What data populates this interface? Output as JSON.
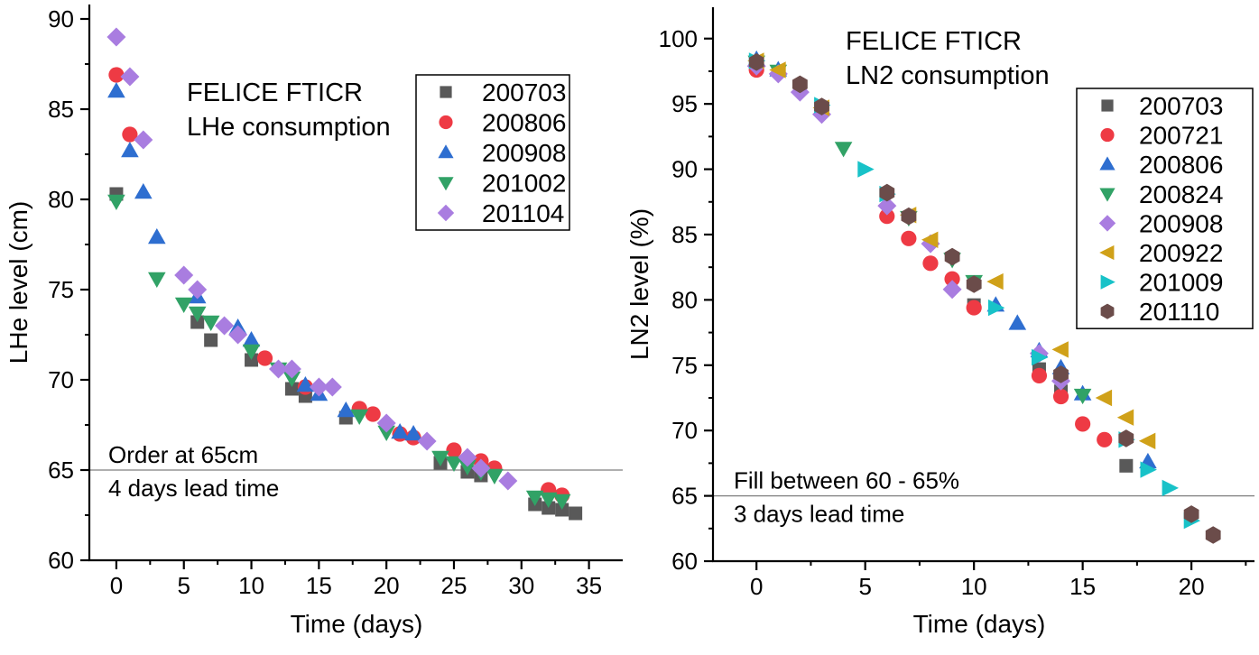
{
  "page": {
    "background": "#ffffff",
    "line_65_color": "#7f7f7f",
    "axis_color": "#000000"
  },
  "chart_data": [
    {
      "type": "scatter",
      "title_lines": [
        "FELICE FTICR",
        "LHe consumption"
      ],
      "xlabel": "Time (days)",
      "ylabel": "LHe level (cm)",
      "xlim": [
        -2,
        37.5
      ],
      "ylim": [
        60,
        90.8
      ],
      "x_ticks": [
        0,
        5,
        10,
        15,
        20,
        25,
        30,
        35
      ],
      "y_ticks": [
        60,
        65,
        70,
        75,
        80,
        85,
        90
      ],
      "x_minor_step": 2.5,
      "y_minor_step": 2.5,
      "grid": false,
      "legend_position": "top-right",
      "annotation": {
        "line_y": 65,
        "text_above": "Order at 65cm",
        "text_below": "4 days lead time"
      },
      "series": [
        {
          "name": "200703",
          "marker": "square",
          "color": "#595959",
          "points": [
            [
              0,
              80.3
            ],
            [
              6,
              73.2
            ],
            [
              7,
              72.2
            ],
            [
              10,
              71.1
            ],
            [
              13,
              69.5
            ],
            [
              14,
              69.1
            ],
            [
              17,
              67.9
            ],
            [
              24,
              65.4
            ],
            [
              26,
              64.9
            ],
            [
              27,
              64.7
            ],
            [
              31,
              63.1
            ],
            [
              32,
              62.9
            ],
            [
              33,
              62.8
            ],
            [
              34,
              62.6
            ]
          ]
        },
        {
          "name": "200806",
          "marker": "circle",
          "color": "#ee3a44",
          "points": [
            [
              0,
              86.9
            ],
            [
              1,
              83.6
            ],
            [
              11,
              71.2
            ],
            [
              14,
              69.6
            ],
            [
              18,
              68.4
            ],
            [
              19,
              68.1
            ],
            [
              21,
              67.0
            ],
            [
              22,
              66.8
            ],
            [
              25,
              66.1
            ],
            [
              27,
              65.5
            ],
            [
              28,
              65.1
            ],
            [
              32,
              63.9
            ],
            [
              33,
              63.6
            ]
          ]
        },
        {
          "name": "200908",
          "marker": "triangle-up",
          "color": "#2e6ed0",
          "points": [
            [
              0,
              86.0
            ],
            [
              1,
              82.7
            ],
            [
              2,
              80.4
            ],
            [
              3,
              77.9
            ],
            [
              6,
              74.6
            ],
            [
              9,
              72.9
            ],
            [
              10,
              72.2
            ],
            [
              14,
              69.7
            ],
            [
              15,
              69.2
            ],
            [
              17,
              68.3
            ],
            [
              21,
              67.1
            ],
            [
              22,
              67.0
            ]
          ]
        },
        {
          "name": "201002",
          "marker": "triangle-down",
          "color": "#31a266",
          "points": [
            [
              0,
              79.9
            ],
            [
              3,
              75.6
            ],
            [
              5,
              74.2
            ],
            [
              6,
              73.7
            ],
            [
              7,
              73.2
            ],
            [
              10,
              71.6
            ],
            [
              12,
              70.6
            ],
            [
              13,
              70.1
            ],
            [
              18,
              68.0
            ],
            [
              20,
              67.1
            ],
            [
              24,
              65.7
            ],
            [
              25,
              65.4
            ],
            [
              26,
              65.2
            ],
            [
              27,
              64.9
            ],
            [
              28,
              64.7
            ],
            [
              31,
              63.5
            ],
            [
              32,
              63.4
            ],
            [
              33,
              63.3
            ]
          ]
        },
        {
          "name": "201104",
          "marker": "diamond",
          "color": "#a97de0",
          "points": [
            [
              0,
              89.0
            ],
            [
              1,
              86.8
            ],
            [
              2,
              83.3
            ],
            [
              5,
              75.8
            ],
            [
              6,
              75.0
            ],
            [
              8,
              73.0
            ],
            [
              9,
              72.5
            ],
            [
              12,
              70.6
            ],
            [
              13,
              70.6
            ],
            [
              15,
              69.6
            ],
            [
              16,
              69.6
            ],
            [
              20,
              67.6
            ],
            [
              23,
              66.6
            ],
            [
              26,
              65.7
            ],
            [
              27,
              65.1
            ],
            [
              29,
              64.4
            ]
          ]
        }
      ]
    },
    {
      "type": "scatter",
      "title_lines": [
        "FELICE FTICR",
        "LN2 consumption"
      ],
      "xlabel": "Time (days)",
      "ylabel": "LN2 level (%)",
      "xlim": [
        -2,
        22.9
      ],
      "ylim": [
        60,
        102.4
      ],
      "x_ticks": [
        0,
        5,
        10,
        15,
        20
      ],
      "y_ticks": [
        60,
        65,
        70,
        75,
        80,
        85,
        90,
        95,
        100
      ],
      "x_minor_step": 2.5,
      "y_minor_step": 2.5,
      "grid": false,
      "legend_position": "top-right",
      "annotation": {
        "line_y": 65,
        "text_above": "Fill between 60 - 65%",
        "text_below": "3 days lead time"
      },
      "series": [
        {
          "name": "200703",
          "marker": "square",
          "color": "#595959",
          "points": [
            [
              0,
              98.2
            ],
            [
              10,
              79.6
            ],
            [
              13,
              74.7
            ],
            [
              14,
              73.0
            ],
            [
              17,
              67.3
            ]
          ]
        },
        {
          "name": "200721",
          "marker": "circle",
          "color": "#ee3a44",
          "points": [
            [
              0,
              97.6
            ],
            [
              6,
              86.4
            ],
            [
              7,
              84.7
            ],
            [
              8,
              82.8
            ],
            [
              9,
              81.6
            ],
            [
              10,
              79.4
            ],
            [
              13,
              74.2
            ],
            [
              14,
              72.6
            ],
            [
              15,
              70.5
            ],
            [
              16,
              69.3
            ]
          ]
        },
        {
          "name": "200806",
          "marker": "triangle-up",
          "color": "#2e6ed0",
          "points": [
            [
              0,
              98.4
            ],
            [
              1,
              97.6
            ],
            [
              11,
              79.6
            ],
            [
              12,
              78.2
            ],
            [
              13,
              76.1
            ],
            [
              14,
              74.8
            ],
            [
              15,
              72.8
            ],
            [
              18,
              67.6
            ]
          ]
        },
        {
          "name": "200824",
          "marker": "triangle-down",
          "color": "#31a266",
          "points": [
            [
              0,
              98.2
            ],
            [
              1,
              97.5
            ],
            [
              4,
              91.6
            ],
            [
              7,
              86.3
            ],
            [
              9,
              83.1
            ],
            [
              10,
              81.4
            ],
            [
              15,
              72.7
            ]
          ]
        },
        {
          "name": "200908",
          "marker": "diamond",
          "color": "#a97de0",
          "points": [
            [
              0,
              97.9
            ],
            [
              1,
              97.3
            ],
            [
              2,
              95.9
            ],
            [
              3,
              94.2
            ],
            [
              6,
              87.2
            ],
            [
              8,
              84.3
            ],
            [
              9,
              80.8
            ],
            [
              13,
              75.9
            ],
            [
              14,
              73.8
            ]
          ]
        },
        {
          "name": "200922",
          "marker": "triangle-left",
          "color": "#d0a119",
          "points": [
            [
              0,
              98.3
            ],
            [
              1,
              97.6
            ],
            [
              3,
              94.7
            ],
            [
              7,
              86.5
            ],
            [
              8,
              84.6
            ],
            [
              11,
              81.4
            ],
            [
              14,
              76.2
            ],
            [
              16,
              72.5
            ],
            [
              17,
              71.0
            ],
            [
              18,
              69.2
            ]
          ]
        },
        {
          "name": "201009",
          "marker": "triangle-right",
          "color": "#18c2c8",
          "points": [
            [
              0,
              98.3
            ],
            [
              3,
              94.9
            ],
            [
              5,
              90.0
            ],
            [
              6,
              88.1
            ],
            [
              11,
              79.4
            ],
            [
              13,
              75.6
            ],
            [
              17,
              69.3
            ],
            [
              18,
              67.0
            ],
            [
              19,
              65.6
            ],
            [
              20,
              63.1
            ]
          ]
        },
        {
          "name": "201110",
          "marker": "hexagon",
          "color": "#6b4c4a",
          "points": [
            [
              0,
              98.2
            ],
            [
              2,
              96.5
            ],
            [
              3,
              94.8
            ],
            [
              6,
              88.2
            ],
            [
              7,
              86.4
            ],
            [
              9,
              83.3
            ],
            [
              10,
              81.2
            ],
            [
              14,
              74.3
            ],
            [
              17,
              69.4
            ],
            [
              20,
              63.6
            ],
            [
              21,
              62.0
            ]
          ]
        }
      ]
    }
  ]
}
